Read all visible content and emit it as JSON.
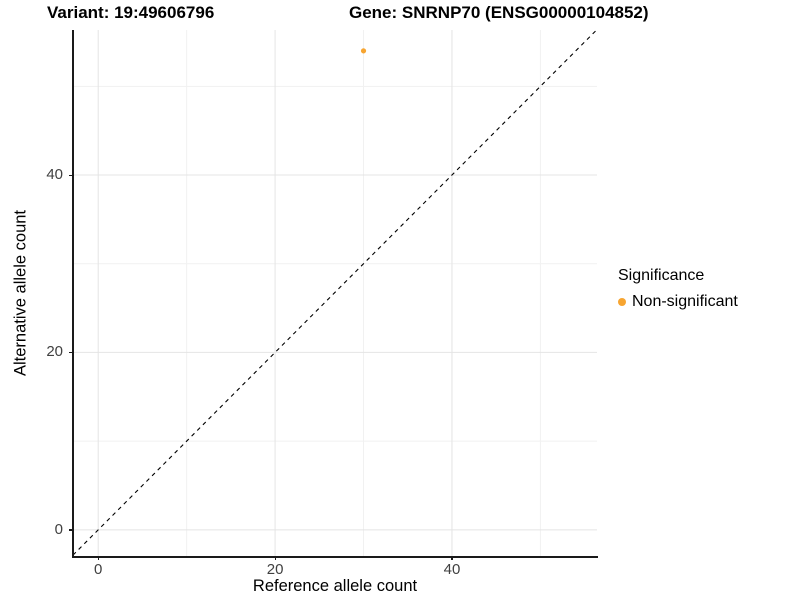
{
  "title": {
    "variant": "Variant: 19:49606796",
    "gene": "Gene: SNRNP70 (ENSG00000104852)"
  },
  "axes": {
    "x": {
      "label": "Reference allele count",
      "ticks": [
        "0",
        "20",
        "40"
      ]
    },
    "y": {
      "label": "Alternative allele count",
      "ticks": [
        "0",
        "20",
        "40"
      ]
    }
  },
  "legend": {
    "title": "Significance",
    "items": [
      {
        "label": "Non-significant",
        "color": "#F7A531"
      }
    ]
  },
  "colors": {
    "point_orange": "#F7A531",
    "major_grid": "#E4E4E4",
    "minor_grid": "#F1F1F1",
    "axis_line": "#1a1a1a",
    "reference_line": "#000000",
    "background": "#ffffff"
  },
  "chart_data": {
    "type": "scatter",
    "title": "Variant: 19:49606796   Gene: SNRNP70 (ENSG00000104852)",
    "xlabel": "Reference allele count",
    "ylabel": "Alternative allele count",
    "xlim": [
      -2.85,
      56.4
    ],
    "ylim": [
      -2.95,
      56.35
    ],
    "x_major_ticks": [
      0,
      20,
      40
    ],
    "y_major_ticks": [
      0,
      20,
      40
    ],
    "x_minor_ticks": [
      10,
      30,
      50
    ],
    "y_minor_ticks": [
      10,
      30,
      50
    ],
    "grid": true,
    "legend_position": "right",
    "series": [
      {
        "name": "Non-significant",
        "color": "#F7A531",
        "points": [
          {
            "x": 30,
            "y": 54
          }
        ]
      }
    ],
    "reference_line": {
      "style": "dashed",
      "slope": 1,
      "intercept": 0,
      "color": "#000000"
    }
  }
}
